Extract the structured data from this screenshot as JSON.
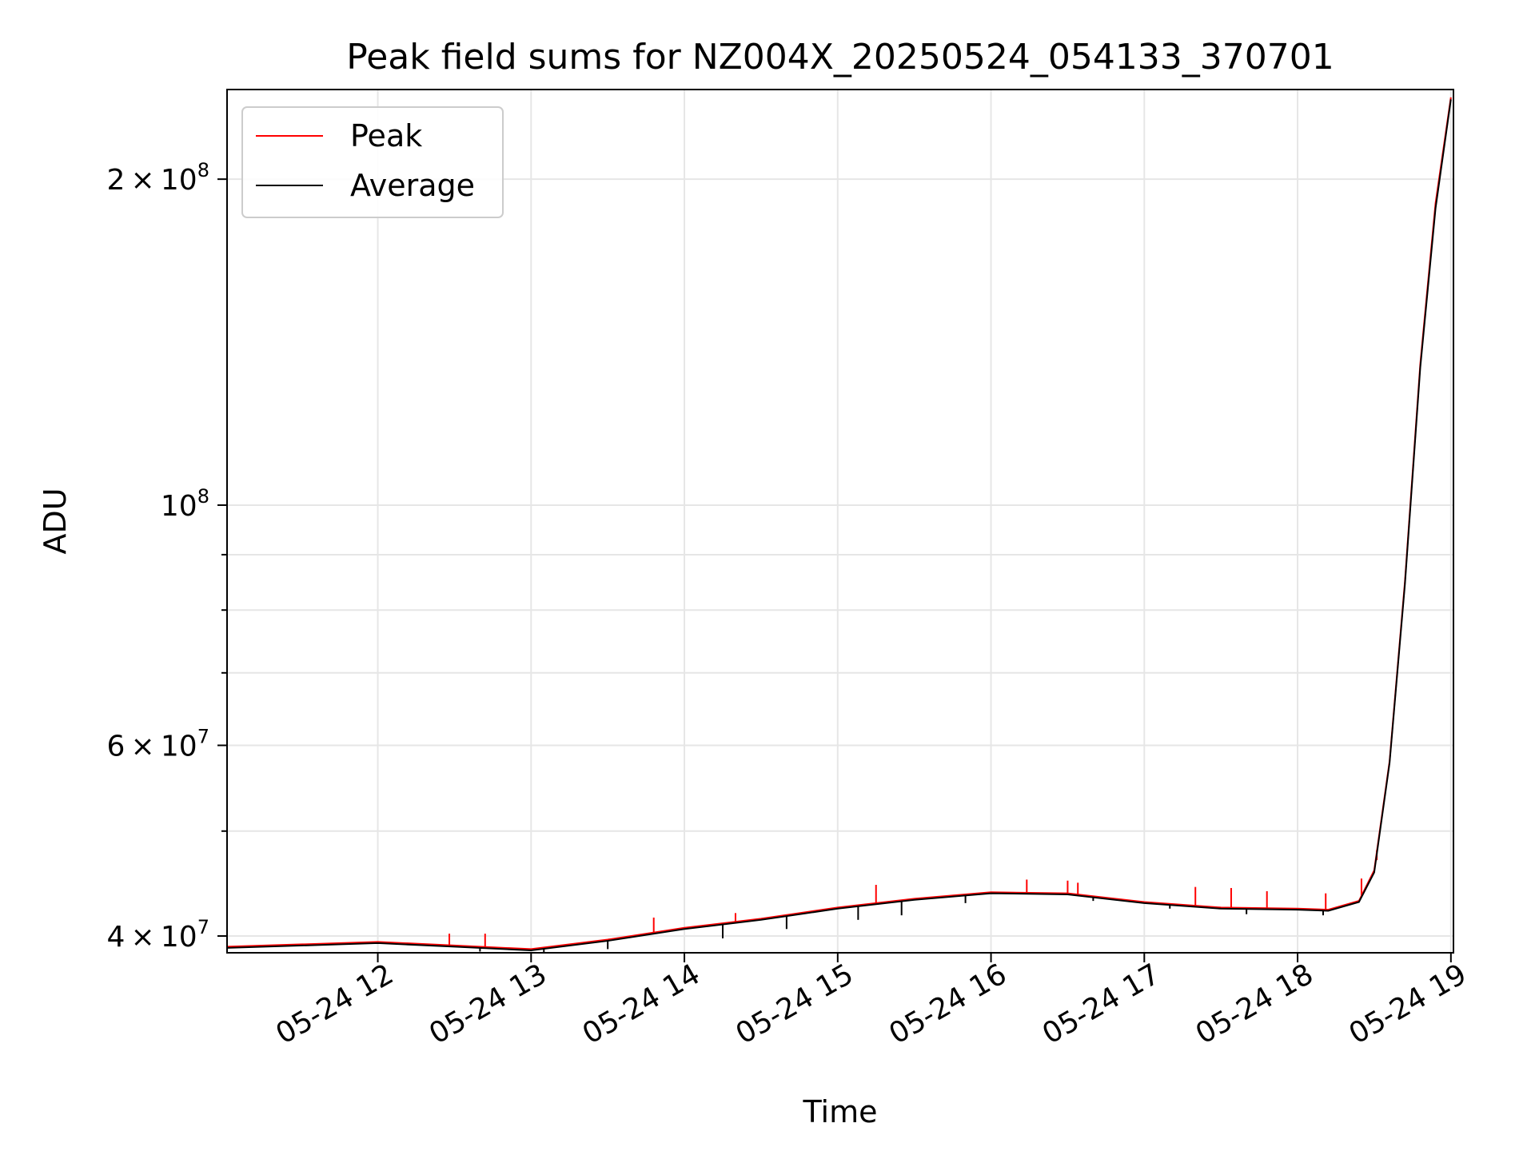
{
  "chart_data": {
    "type": "line",
    "title": "Peak field sums for NZ004X_20250524_054133_370701",
    "xlabel": "Time",
    "ylabel": "ADU",
    "xscale": "time",
    "yscale": "log",
    "xlim": [
      "2025-05-24 11:01",
      "2025-05-24 19:01"
    ],
    "ylim": [
      38600000,
      242000000
    ],
    "grid": true,
    "legend_position": "top-left",
    "x_ticks": [
      {
        "value": "2025-05-24 12:00",
        "label": "05-24 12"
      },
      {
        "value": "2025-05-24 13:00",
        "label": "05-24 13"
      },
      {
        "value": "2025-05-24 14:00",
        "label": "05-24 14"
      },
      {
        "value": "2025-05-24 15:00",
        "label": "05-24 15"
      },
      {
        "value": "2025-05-24 16:00",
        "label": "05-24 16"
      },
      {
        "value": "2025-05-24 17:00",
        "label": "05-24 17"
      },
      {
        "value": "2025-05-24 18:00",
        "label": "05-24 18"
      },
      {
        "value": "2025-05-24 19:00",
        "label": "05-24 19"
      }
    ],
    "y_major_ticks": [
      {
        "value": 40000000,
        "mantissa": "4",
        "exponent": "7"
      },
      {
        "value": 60000000,
        "mantissa": "6",
        "exponent": "7"
      },
      {
        "value": 100000000,
        "mantissa": "",
        "exponent": "8"
      },
      {
        "value": 200000000,
        "mantissa": "2",
        "exponent": "8"
      }
    ],
    "y_minor_ticks": [
      50000000,
      70000000,
      80000000,
      90000000
    ],
    "series": [
      {
        "name": "Peak",
        "color": "#ff0000",
        "x": [
          "2025-05-24 11:01",
          "2025-05-24 12:00",
          "2025-05-24 12:30",
          "2025-05-24 13:00",
          "2025-05-24 13:30",
          "2025-05-24 14:00",
          "2025-05-24 14:30",
          "2025-05-24 15:00",
          "2025-05-24 15:30",
          "2025-05-24 16:00",
          "2025-05-24 16:30",
          "2025-05-24 17:00",
          "2025-05-24 17:30",
          "2025-05-24 18:00",
          "2025-05-24 18:12",
          "2025-05-24 18:24",
          "2025-05-24 18:30",
          "2025-05-24 18:36",
          "2025-05-24 18:42",
          "2025-05-24 18:48",
          "2025-05-24 18:54",
          "2025-05-24 19:00"
        ],
        "values": [
          39100000,
          39500000,
          39200000,
          38900000,
          39700000,
          40700000,
          41500000,
          42500000,
          43300000,
          43900000,
          43800000,
          43000000,
          42500000,
          42400000,
          42300000,
          43100000,
          46000000,
          58000000,
          85000000,
          135000000,
          190000000,
          238000000
        ],
        "spikes": [
          {
            "x": "2025-05-24 12:28",
            "value": 40200000
          },
          {
            "x": "2025-05-24 12:42",
            "value": 40200000
          },
          {
            "x": "2025-05-24 13:48",
            "value": 41600000
          },
          {
            "x": "2025-05-24 14:20",
            "value": 42000000
          },
          {
            "x": "2025-05-24 15:15",
            "value": 44600000
          },
          {
            "x": "2025-05-24 16:14",
            "value": 45100000
          },
          {
            "x": "2025-05-24 16:30",
            "value": 45000000
          },
          {
            "x": "2025-05-24 16:34",
            "value": 44800000
          },
          {
            "x": "2025-05-24 17:20",
            "value": 44400000
          },
          {
            "x": "2025-05-24 17:34",
            "value": 44300000
          },
          {
            "x": "2025-05-24 17:48",
            "value": 44000000
          },
          {
            "x": "2025-05-24 18:11",
            "value": 43800000
          },
          {
            "x": "2025-05-24 18:25",
            "value": 45200000
          },
          {
            "x": "2025-05-24 18:31",
            "value": 47000000
          }
        ]
      },
      {
        "name": "Average",
        "color": "#000000",
        "x": [
          "2025-05-24 11:01",
          "2025-05-24 12:00",
          "2025-05-24 12:30",
          "2025-05-24 13:00",
          "2025-05-24 13:30",
          "2025-05-24 14:00",
          "2025-05-24 14:30",
          "2025-05-24 15:00",
          "2025-05-24 15:30",
          "2025-05-24 16:00",
          "2025-05-24 16:30",
          "2025-05-24 17:00",
          "2025-05-24 17:30",
          "2025-05-24 18:00",
          "2025-05-24 18:12",
          "2025-05-24 18:24",
          "2025-05-24 18:30",
          "2025-05-24 18:36",
          "2025-05-24 18:42",
          "2025-05-24 18:48",
          "2025-05-24 18:54",
          "2025-05-24 19:00"
        ],
        "values": [
          39000000,
          39400000,
          39100000,
          38800000,
          39600000,
          40600000,
          41400000,
          42400000,
          43200000,
          43800000,
          43700000,
          42900000,
          42400000,
          42300000,
          42200000,
          43000000,
          45800000,
          57800000,
          84500000,
          134000000,
          188000000,
          237000000
        ],
        "dips": [
          {
            "x": "2025-05-24 12:40",
            "value": 38700000
          },
          {
            "x": "2025-05-24 13:05",
            "value": 38600000
          },
          {
            "x": "2025-05-24 13:30",
            "value": 38900000
          },
          {
            "x": "2025-05-24 14:15",
            "value": 39800000
          },
          {
            "x": "2025-05-24 14:40",
            "value": 40600000
          },
          {
            "x": "2025-05-24 15:08",
            "value": 41400000
          },
          {
            "x": "2025-05-24 15:25",
            "value": 41800000
          },
          {
            "x": "2025-05-24 15:50",
            "value": 42900000
          },
          {
            "x": "2025-05-24 16:40",
            "value": 43100000
          },
          {
            "x": "2025-05-24 17:10",
            "value": 42400000
          },
          {
            "x": "2025-05-24 17:40",
            "value": 41900000
          },
          {
            "x": "2025-05-24 18:10",
            "value": 41800000
          }
        ]
      }
    ]
  }
}
